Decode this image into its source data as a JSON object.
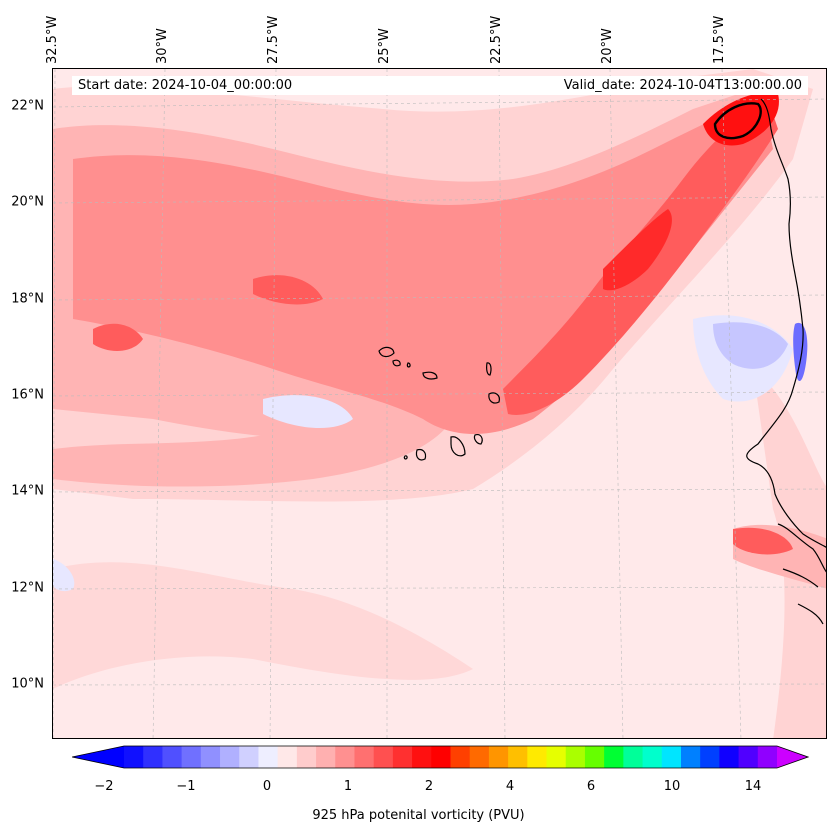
{
  "header": {
    "start_date": "Start date: 2024-10-04_00:00:00",
    "valid_date": "Valid_date: 2024-10-04T13:00:00.00"
  },
  "axes": {
    "lon_labels": [
      "32.5°W",
      "30°W",
      "27.5°W",
      "25°W",
      "22.5°W",
      "20°W",
      "17.5°W"
    ],
    "lat_labels": [
      "22°N",
      "20°N",
      "18°N",
      "16°N",
      "14°N",
      "12°N",
      "10°N"
    ]
  },
  "colorbar": {
    "title": "925 hPa potenital vorticity (PVU)",
    "ticks": [
      "−2",
      "−1",
      "0",
      "1",
      "2",
      "4",
      "6",
      "10",
      "14"
    ],
    "colors": [
      "#1010ff",
      "#3030ff",
      "#5050ff",
      "#7070ff",
      "#9090ff",
      "#b0b0ff",
      "#d0d0ff",
      "#eeeeff",
      "#ffe8e8",
      "#ffcccc",
      "#ffb0b0",
      "#ff9090",
      "#ff7070",
      "#ff5050",
      "#ff3030",
      "#ff1010",
      "#ff0000",
      "#ff4000",
      "#ff6a00",
      "#ff9500",
      "#ffbf00",
      "#ffea00",
      "#e6ff00",
      "#aaff00",
      "#66ff00",
      "#00ff33",
      "#00ff99",
      "#00ffcc",
      "#00e5ff",
      "#0080ff",
      "#0040ff",
      "#1000ff",
      "#5000ff",
      "#9000ff"
    ],
    "under_color": "#0000ff",
    "over_color": "#cc00ff"
  },
  "map": {
    "background": "#ffe9ea",
    "field_colors": {
      "light_pink": "#ffd3d3",
      "mid_pink": "#ffb4b4",
      "salmon": "#ff8f8f",
      "red": "#ff5c5c",
      "strong_red": "#ff2a2a",
      "light_blue": "#e7e7ff",
      "mid_blue": "#c6c6ff",
      "blue": "#6d6dff"
    }
  }
}
